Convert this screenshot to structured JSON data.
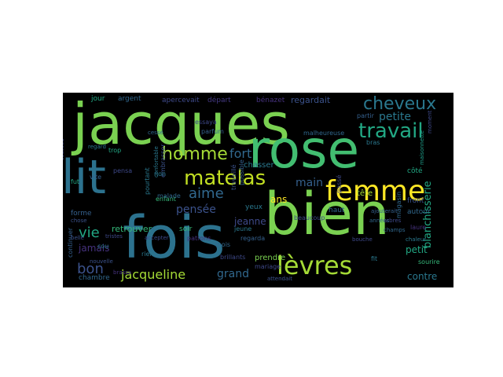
{
  "word_cloud": {
    "background": "#000000",
    "words": [
      {
        "text": "jacques",
        "color": "#7ad151"
      },
      {
        "text": "rose",
        "color": "#42be71"
      },
      {
        "text": "bien",
        "color": "#7ad151"
      },
      {
        "text": "fois",
        "color": "#2c728e"
      },
      {
        "text": "lit",
        "color": "#2c728e"
      },
      {
        "text": "femme",
        "color": "#fde725"
      },
      {
        "text": "lèvres",
        "color": "#a5db36"
      },
      {
        "text": "matelas",
        "color": "#c2df23"
      },
      {
        "text": "travail",
        "color": "#22a884"
      },
      {
        "text": "cheveux",
        "color": "#2a788e"
      },
      {
        "text": "homme",
        "color": "#a5db36"
      },
      {
        "text": "aime",
        "color": "#31688e"
      },
      {
        "text": "vie",
        "color": "#22a884"
      },
      {
        "text": "bon",
        "color": "#3b528b"
      },
      {
        "text": "fort",
        "color": "#31688e"
      },
      {
        "text": "main",
        "color": "#35608d"
      },
      {
        "text": "jacqueline",
        "color": "#a5db36"
      },
      {
        "text": "pensée",
        "color": "#3b528b"
      },
      {
        "text": "petite",
        "color": "#2a788e"
      },
      {
        "text": "grand",
        "color": "#31688e"
      },
      {
        "text": "blanchisserie",
        "color": "#22a884"
      },
      {
        "text": "regardait",
        "color": "#3b528b"
      },
      {
        "text": "jamais",
        "color": "#46327e"
      },
      {
        "text": "retrouver",
        "color": "#35b779"
      },
      {
        "text": "jeanne",
        "color": "#3e4989"
      },
      {
        "text": "ans",
        "color": "#fde725"
      },
      {
        "text": "petit",
        "color": "#22a884"
      },
      {
        "text": "contre",
        "color": "#2a788e"
      },
      {
        "text": "argent",
        "color": "#31688e"
      },
      {
        "text": "apercevait",
        "color": "#3e4989"
      },
      {
        "text": "départ",
        "color": "#443983"
      },
      {
        "text": "bénazet",
        "color": "#46327e"
      },
      {
        "text": "chasser",
        "color": "#2a788e"
      },
      {
        "text": "forme",
        "color": "#35608d"
      },
      {
        "text": "enfant",
        "color": "#35b779"
      },
      {
        "text": "tête",
        "color": "#a5db36"
      },
      {
        "text": "yeux",
        "color": "#2a788e"
      },
      {
        "text": "côté",
        "color": "#22a884"
      },
      {
        "text": "front",
        "color": "#3b528b"
      },
      {
        "text": "laure",
        "color": "#46327e"
      },
      {
        "text": "autour",
        "color": "#31688e"
      },
      {
        "text": "haut",
        "color": "#31688e"
      },
      {
        "text": "soir",
        "color": "#35b779"
      },
      {
        "text": "chambre",
        "color": "#31688e"
      },
      {
        "text": "mariage",
        "color": "#3e4989"
      },
      {
        "text": "prendre",
        "color": "#7ad151"
      },
      {
        "text": "sourire",
        "color": "#35b779"
      },
      {
        "text": "continuer",
        "color": "#35608d"
      },
      {
        "text": "patrons",
        "color": "#46327e"
      },
      {
        "text": "parfum",
        "color": "#35608d"
      },
      {
        "text": "essaya",
        "color": "#3e4989"
      },
      {
        "text": "jour",
        "color": "#22a884"
      },
      {
        "text": "chose",
        "color": "#3b528b"
      },
      {
        "text": "regard",
        "color": "#2a788e"
      },
      {
        "text": "trop",
        "color": "#22a884"
      },
      {
        "text": "malade",
        "color": "#31688e"
      },
      {
        "text": "jeune",
        "color": "#2a788e"
      },
      {
        "text": "mois",
        "color": "#31688e"
      },
      {
        "text": "partir",
        "color": "#35608d"
      },
      {
        "text": "rien",
        "color": "#2a788e"
      },
      {
        "text": "regarda",
        "color": "#35608d"
      },
      {
        "text": "fut",
        "color": "#22a884"
      },
      {
        "text": "cou",
        "color": "#2a788e"
      },
      {
        "text": "georges",
        "color": "#3e4989"
      },
      {
        "text": "confortable",
        "color": "#2a788e"
      },
      {
        "text": "embrasser",
        "color": "#3b528b"
      },
      {
        "text": "magasin",
        "color": "#31688e"
      },
      {
        "text": "passé",
        "color": "#3e4989"
      },
      {
        "text": "maisonnette",
        "color": "#1f9e89"
      },
      {
        "text": "malheureuse",
        "color": "#31688e"
      },
      {
        "text": "travaillé",
        "color": "#3b528b"
      },
      {
        "text": "possible",
        "color": "#35608d"
      },
      {
        "text": "pourtant",
        "color": "#2a788e"
      },
      {
        "text": "brillants",
        "color": "#3e4989"
      },
      {
        "text": "beaucoup",
        "color": "#3e4989"
      },
      {
        "text": "années",
        "color": "#31688e"
      },
      {
        "text": "nouvelle",
        "color": "#3b528b"
      },
      {
        "text": "tristes",
        "color": "#3e4989"
      },
      {
        "text": "pensa",
        "color": "#3e4989"
      },
      {
        "text": "bras",
        "color": "#2a788e"
      },
      {
        "text": "arbres",
        "color": "#3e4989"
      },
      {
        "text": "champs",
        "color": "#31688e"
      },
      {
        "text": "chaleur",
        "color": "#2a788e"
      },
      {
        "text": "accepter",
        "color": "#3e4989"
      },
      {
        "text": "attendait",
        "color": "#3b528b"
      },
      {
        "text": "ajouterait",
        "color": "#35608d"
      },
      {
        "text": "moment",
        "color": "#3e4989"
      },
      {
        "text": "cessé",
        "color": "#31688e"
      },
      {
        "text": "bouche",
        "color": "#3e4989"
      },
      {
        "text": "vite",
        "color": "#35608d"
      },
      {
        "text": "belle",
        "color": "#3b528b"
      },
      {
        "text": "non",
        "color": "#2a788e"
      },
      {
        "text": "fit",
        "color": "#2a788e"
      },
      {
        "text": "brassa",
        "color": "#46327e"
      }
    ]
  }
}
